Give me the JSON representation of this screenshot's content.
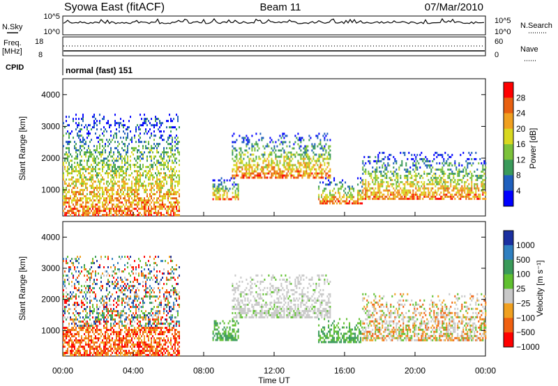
{
  "header": {
    "title": "Syowa East (fitACF)",
    "beam": "Beam 11",
    "date": "07/Mar/2010"
  },
  "status_panels": {
    "nsky": {
      "label": "N.Sky",
      "tick_top": "10^5",
      "tick_bottom": "10^0"
    },
    "nsearch": {
      "label": "N.Search",
      "tick_top": "10^5",
      "tick_bottom": "10^0"
    },
    "freq": {
      "label_line1": "Freq.",
      "label_line2": "[MHz]",
      "tick_top": "18",
      "tick_bottom": "8"
    },
    "nave": {
      "label": "Nave",
      "tick_top": "60",
      "tick_bottom": "0"
    },
    "cpid": {
      "label": "CPID",
      "mode_text": "normal (fast) 151"
    }
  },
  "chart_data": [
    {
      "type": "heatmap",
      "panel": "power",
      "ylabel": "Slant Range [km]",
      "x_ticks": [
        "00:00",
        "04:00",
        "08:00",
        "12:00",
        "16:00",
        "20:00",
        "00:00"
      ],
      "xlim_hours": [
        0,
        24
      ],
      "y_ticks": [
        "1000",
        "2000",
        "3000",
        "4000"
      ],
      "ylim_km": [
        180,
        4500
      ],
      "colorbar": {
        "label": "Power [dB]",
        "ticks": [
          "4",
          "8",
          "12",
          "16",
          "20",
          "24",
          "28"
        ],
        "colors": [
          "#0000ff",
          "#1f5fbd",
          "#3a9a5a",
          "#7cc23a",
          "#d8d820",
          "#f0a020",
          "#e86010",
          "#ff0000"
        ]
      },
      "echo_regions": [
        {
          "t0": 0.0,
          "t1": 6.6,
          "r0": 200,
          "r1": 3400,
          "note": "morning echoes, strongest below 800 km"
        },
        {
          "t0": 8.5,
          "t1": 10.0,
          "r0": 700,
          "r1": 1400,
          "note": "descending streaks"
        },
        {
          "t0": 9.6,
          "t1": 15.2,
          "r0": 1400,
          "r1": 2800,
          "note": "band near 1600-2000 km"
        },
        {
          "t0": 14.5,
          "t1": 17.0,
          "r0": 600,
          "r1": 1400,
          "note": "strong echoes near 800-1000 km"
        },
        {
          "t0": 17.0,
          "t1": 24.0,
          "r0": 700,
          "r1": 2200,
          "note": "evening echoes"
        }
      ]
    },
    {
      "type": "heatmap",
      "panel": "velocity",
      "xlabel": "Time UT",
      "ylabel": "Slant Range [km]",
      "x_ticks": [
        "00:00",
        "04:00",
        "08:00",
        "12:00",
        "16:00",
        "20:00",
        "00:00"
      ],
      "xlim_hours": [
        0,
        24
      ],
      "y_ticks": [
        "1000",
        "2000",
        "3000",
        "4000"
      ],
      "ylim_km": [
        180,
        4500
      ],
      "colorbar": {
        "label": "Velocity [m s⁻¹]",
        "ticks": [
          "1000",
          "500",
          "100",
          "25",
          "−25",
          "−100",
          "−500",
          "−1000"
        ],
        "colors": [
          "#1a2fa0",
          "#2f7fc0",
          "#3a9a5a",
          "#60c030",
          "#c8c8c8",
          "#f0a020",
          "#f06010",
          "#ff0000"
        ]
      },
      "echo_regions": [
        {
          "t0": 0.0,
          "t1": 6.6,
          "r0": 200,
          "r1": 3400,
          "note": "mostly negative (orange/red) near ground"
        },
        {
          "t0": 8.5,
          "t1": 10.0,
          "r0": 700,
          "r1": 1400,
          "note": "positive (green) streaks"
        },
        {
          "t0": 9.6,
          "t1": 15.2,
          "r0": 1400,
          "r1": 2800,
          "note": "ground scatter (grey)"
        },
        {
          "t0": 14.5,
          "t1": 17.0,
          "r0": 600,
          "r1": 1400,
          "note": "green, some blue"
        },
        {
          "t0": 17.0,
          "t1": 24.0,
          "r0": 700,
          "r1": 2200,
          "note": "mixed grey, green and orange"
        }
      ]
    }
  ]
}
